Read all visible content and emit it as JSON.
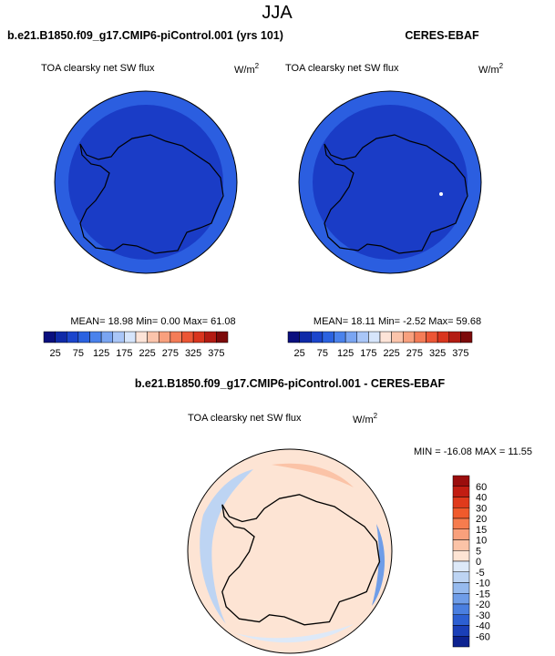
{
  "title": "JJA",
  "panels": [
    {
      "title": "b.e21.B1850.f09_g17.CMIP6-piControl.001 (yrs 101)",
      "variable": "TOA clearsky net SW flux",
      "units": {
        "base": "W/m",
        "exp": "2"
      },
      "stats": "MEAN= 18.98  Min=  0.00  Max= 61.08"
    },
    {
      "title": "CERES-EBAF",
      "variable": "TOA clearsky net SW flux",
      "units": {
        "base": "W/m",
        "exp": "2"
      },
      "stats": "MEAN= 18.11  Min= -2.52  Max= 59.68"
    }
  ],
  "colorbar": {
    "labels": [
      "25",
      "75",
      "125",
      "175",
      "225",
      "275",
      "325",
      "375"
    ],
    "colors": [
      "#0a0f7e",
      "#0f2aa8",
      "#1b45cc",
      "#2b62e0",
      "#4a82ec",
      "#7aa5f2",
      "#a9c6f7",
      "#d6e5fb",
      "#fde4d8",
      "#fbc4ab",
      "#f8a07e",
      "#f47c57",
      "#ec5635",
      "#d9351e",
      "#b31b12",
      "#7c0a0a"
    ]
  },
  "difference": {
    "title": "b.e21.B1850.f09_g17.CMIP6-piControl.001 - CERES-EBAF",
    "variable": "TOA clearsky net SW flux",
    "units": {
      "base": "W/m",
      "exp": "2"
    },
    "stats": "MIN = -16.08 MAX =  11.55",
    "colorbar": {
      "labels": [
        "60",
        "40",
        "30",
        "20",
        "15",
        "10",
        "5",
        "0",
        "-5",
        "-10",
        "-15",
        "-20",
        "-30",
        "-40",
        "-60"
      ],
      "colors": [
        "#9b0d0d",
        "#c21d12",
        "#e03a1c",
        "#f05a2c",
        "#f67c4e",
        "#f9a07c",
        "#fbc3a7",
        "#fde4d4",
        "#dde9f8",
        "#bdd4f3",
        "#96baee",
        "#6f9de8",
        "#4a7fe0",
        "#2c5fd2",
        "#1a3fb8",
        "#0d2290"
      ]
    }
  }
}
